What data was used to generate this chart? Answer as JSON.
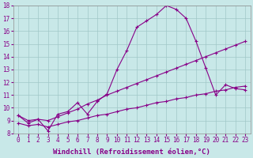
{
  "xlabel": "Windchill (Refroidissement éolien,°C)",
  "xlim": [
    -0.5,
    23.5
  ],
  "ylim": [
    8,
    18
  ],
  "xticks": [
    0,
    1,
    2,
    3,
    4,
    5,
    6,
    7,
    8,
    9,
    10,
    11,
    12,
    13,
    14,
    15,
    16,
    17,
    18,
    19,
    20,
    21,
    22,
    23
  ],
  "yticks": [
    8,
    9,
    10,
    11,
    12,
    13,
    14,
    15,
    16,
    17,
    18
  ],
  "bg_color": "#c8e8e8",
  "line_color": "#880088",
  "line1_x": [
    0,
    1,
    2,
    3,
    4,
    5,
    6,
    7,
    8,
    9,
    10,
    11,
    12,
    13,
    14,
    15,
    16,
    17,
    18,
    19,
    20,
    21,
    22,
    23
  ],
  "line1_y": [
    9.4,
    8.8,
    9.1,
    8.2,
    9.5,
    9.7,
    10.4,
    9.5,
    10.5,
    11.1,
    13.0,
    14.5,
    16.3,
    16.8,
    17.3,
    18.0,
    17.7,
    17.0,
    15.2,
    13.1,
    11.0,
    11.8,
    11.5,
    11.4
  ],
  "line2_x": [
    0,
    1,
    2,
    3,
    4,
    5,
    6,
    7,
    8,
    9,
    10,
    11,
    12,
    13,
    14,
    15,
    16,
    17,
    18,
    19,
    20,
    21,
    22,
    23
  ],
  "line2_y": [
    9.4,
    9.0,
    9.1,
    9.0,
    9.3,
    9.6,
    9.9,
    10.3,
    10.6,
    11.0,
    11.3,
    11.6,
    11.9,
    12.2,
    12.5,
    12.8,
    13.1,
    13.4,
    13.7,
    14.0,
    14.3,
    14.6,
    14.9,
    15.2
  ],
  "line3_x": [
    0,
    1,
    2,
    3,
    4,
    5,
    6,
    7,
    8,
    9,
    10,
    11,
    12,
    13,
    14,
    15,
    16,
    17,
    18,
    19,
    20,
    21,
    22,
    23
  ],
  "line3_y": [
    8.8,
    8.6,
    8.7,
    8.5,
    8.7,
    8.9,
    9.0,
    9.2,
    9.4,
    9.5,
    9.7,
    9.9,
    10.0,
    10.2,
    10.4,
    10.5,
    10.7,
    10.8,
    11.0,
    11.1,
    11.3,
    11.4,
    11.6,
    11.7
  ],
  "marker": "+",
  "markersize": 3,
  "linewidth": 0.8,
  "tick_fontsize": 5.5,
  "label_fontsize": 6.5
}
